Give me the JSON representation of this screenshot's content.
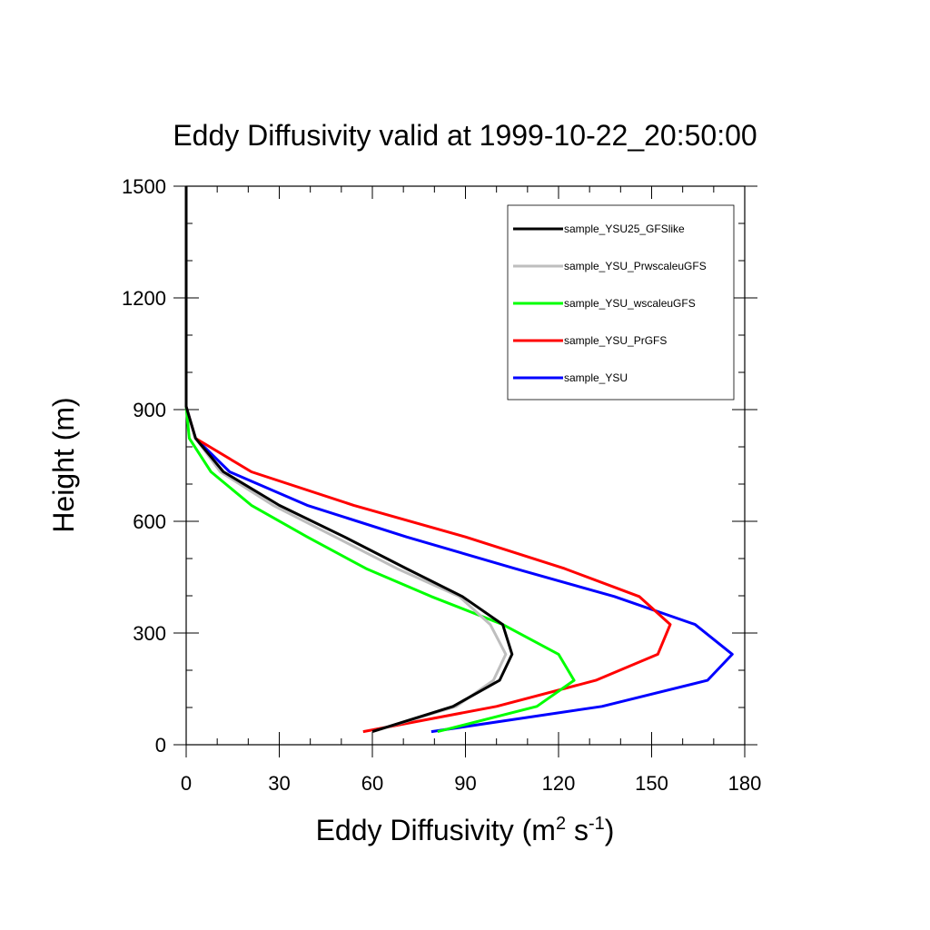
{
  "chart_data": {
    "type": "line",
    "title": "Eddy Diffusivity valid at 1999-10-22_20:50:00",
    "xlabel_main": "Eddy Diffusivity (m",
    "xlabel_sup1": "2",
    "xlabel_mid": " s",
    "xlabel_sup2": "-1",
    "xlabel_end": ")",
    "ylabel": "Height (m)",
    "xlim": [
      0,
      180
    ],
    "ylim": [
      0,
      1500
    ],
    "xticks": [
      "0",
      "30",
      "60",
      "90",
      "120",
      "150",
      "180"
    ],
    "yticks": [
      "0",
      "300",
      "600",
      "900",
      "1200",
      "1500"
    ],
    "legend_position": "top-right",
    "series": [
      {
        "name": "sample_YSU25_GFSlike",
        "color": "#000000",
        "points": [
          [
            60,
            35
          ],
          [
            86,
            103
          ],
          [
            101,
            173
          ],
          [
            105,
            243
          ],
          [
            102,
            323
          ],
          [
            89,
            398
          ],
          [
            71,
            473
          ],
          [
            51,
            558
          ],
          [
            30,
            643
          ],
          [
            12,
            733
          ],
          [
            3,
            823
          ],
          [
            0,
            908
          ],
          [
            0,
            1000
          ],
          [
            0,
            1200
          ],
          [
            0,
            1500
          ]
        ]
      },
      {
        "name": "sample_YSU_PrwscaleuGFS",
        "color": "#bebebe",
        "points": [
          [
            60,
            35
          ],
          [
            87,
            103
          ],
          [
            99,
            173
          ],
          [
            103,
            243
          ],
          [
            98,
            323
          ],
          [
            88,
            398
          ],
          [
            68,
            473
          ],
          [
            48,
            558
          ],
          [
            28,
            643
          ],
          [
            11,
            733
          ],
          [
            3,
            823
          ],
          [
            0,
            908
          ],
          [
            0,
            1000
          ],
          [
            0,
            1200
          ],
          [
            0,
            1500
          ]
        ]
      },
      {
        "name": "sample_YSU_wscaleuGFS",
        "color": "#00ff00",
        "points": [
          [
            81,
            35
          ],
          [
            113,
            103
          ],
          [
            125,
            173
          ],
          [
            120,
            243
          ],
          [
            102,
            323
          ],
          [
            79,
            398
          ],
          [
            58,
            473
          ],
          [
            39,
            558
          ],
          [
            21,
            643
          ],
          [
            8,
            733
          ],
          [
            1,
            823
          ],
          [
            0,
            908
          ],
          [
            0,
            1000
          ],
          [
            0,
            1200
          ],
          [
            0,
            1500
          ]
        ]
      },
      {
        "name": "sample_YSU_PrGFS",
        "color": "#ff0000",
        "points": [
          [
            57,
            35
          ],
          [
            100,
            103
          ],
          [
            132,
            173
          ],
          [
            152,
            243
          ],
          [
            156,
            323
          ],
          [
            146,
            398
          ],
          [
            122,
            473
          ],
          [
            90,
            558
          ],
          [
            54,
            643
          ],
          [
            21,
            733
          ],
          [
            3,
            823
          ],
          [
            0,
            908
          ],
          [
            0,
            1000
          ],
          [
            0,
            1200
          ],
          [
            0,
            1500
          ]
        ]
      },
      {
        "name": "sample_YSU",
        "color": "#0000ff",
        "points": [
          [
            79,
            35
          ],
          [
            134,
            103
          ],
          [
            168,
            173
          ],
          [
            176,
            243
          ],
          [
            164,
            323
          ],
          [
            138,
            398
          ],
          [
            106,
            473
          ],
          [
            71,
            558
          ],
          [
            39,
            643
          ],
          [
            14,
            733
          ],
          [
            3,
            823
          ],
          [
            0,
            908
          ],
          [
            0,
            1000
          ],
          [
            0,
            1200
          ],
          [
            0,
            1500
          ]
        ]
      }
    ]
  }
}
